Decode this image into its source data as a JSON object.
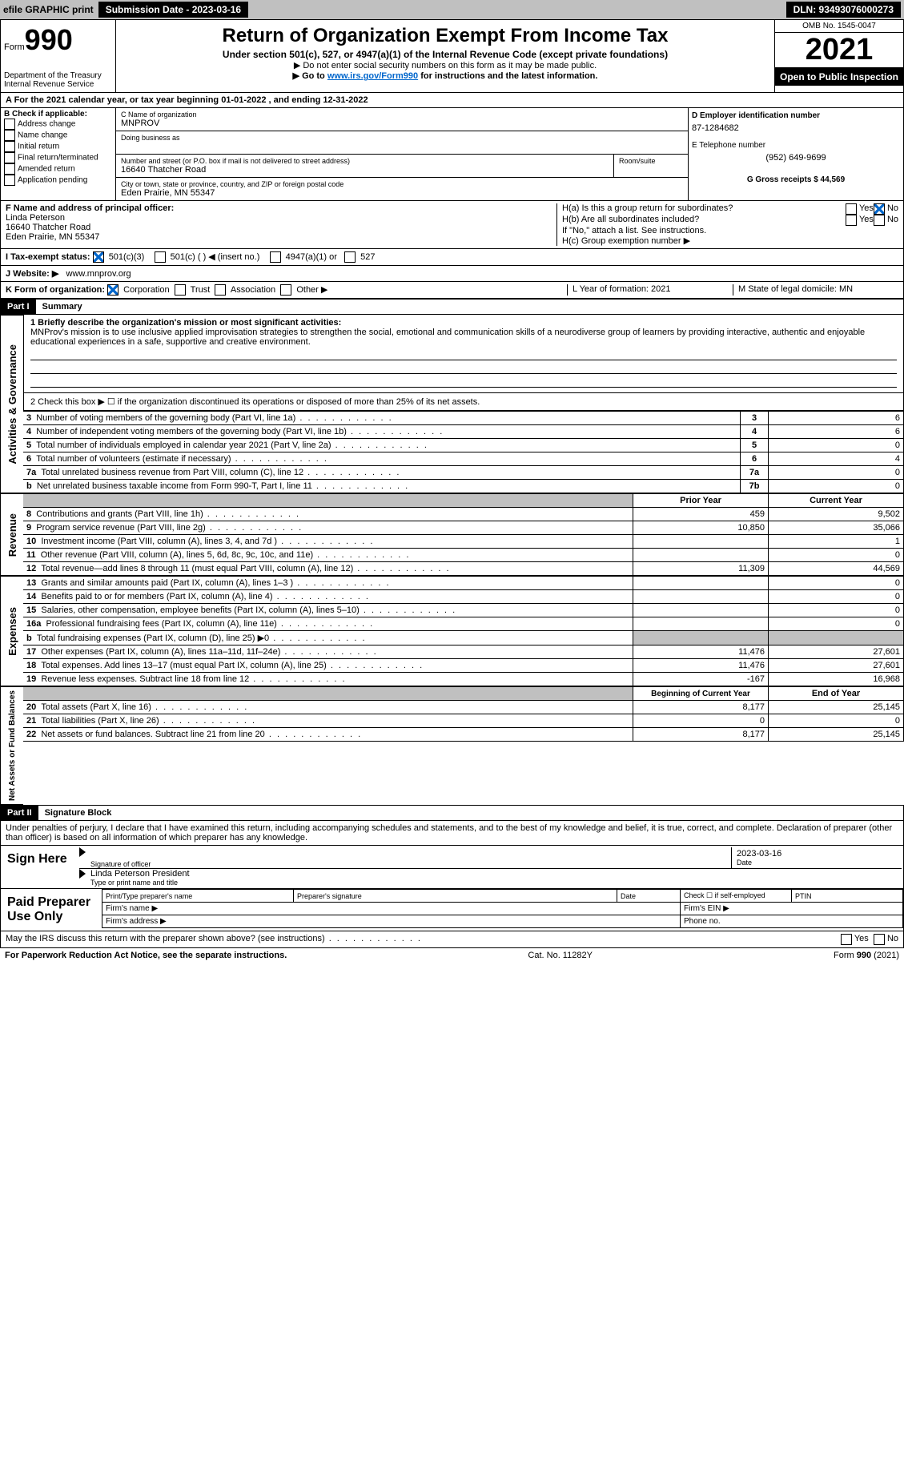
{
  "top_bar": {
    "efile_label": "efile GRAPHIC print",
    "submission_label": "Submission Date - 2023-03-16",
    "dln_label": "DLN: 93493076000273"
  },
  "header": {
    "form_word": "Form",
    "form_num": "990",
    "dept": "Department of the Treasury",
    "irs": "Internal Revenue Service",
    "title": "Return of Organization Exempt From Income Tax",
    "subtitle": "Under section 501(c), 527, or 4947(a)(1) of the Internal Revenue Code (except private foundations)",
    "note1": "▶ Do not enter social security numbers on this form as it may be made public.",
    "note2_pre": "▶ Go to ",
    "note2_link": "www.irs.gov/Form990",
    "note2_post": " for instructions and the latest information.",
    "omb": "OMB No. 1545-0047",
    "year": "2021",
    "open": "Open to Public Inspection"
  },
  "period": {
    "line": "A For the 2021 calendar year, or tax year beginning 01-01-2022    , and ending 12-31-2022"
  },
  "section_b": {
    "title": "B Check if applicable:",
    "opts": [
      "Address change",
      "Name change",
      "Initial return",
      "Final return/terminated",
      "Amended return",
      "Application pending"
    ]
  },
  "section_c": {
    "name_label": "C Name of organization",
    "name": "MNPROV",
    "dba_label": "Doing business as",
    "street_label": "Number and street (or P.O. box if mail is not delivered to street address)",
    "room_label": "Room/suite",
    "street": "16640 Thatcher Road",
    "city_label": "City or town, state or province, country, and ZIP or foreign postal code",
    "city": "Eden Prairie, MN  55347"
  },
  "section_d": {
    "ein_label": "D Employer identification number",
    "ein": "87-1284682",
    "phone_label": "E Telephone number",
    "phone": "(952) 649-9699",
    "gross_label": "G Gross receipts $ 44,569"
  },
  "section_f": {
    "label": "F  Name and address of principal officer:",
    "name": "Linda Peterson",
    "street": "16640 Thatcher Road",
    "city": "Eden Prairie, MN  55347"
  },
  "section_h": {
    "ha": "H(a)  Is this a group return for subordinates?",
    "hb": "H(b)  Are all subordinates included?",
    "hb_note": "If \"No,\" attach a list. See instructions.",
    "hc": "H(c)  Group exemption number ▶",
    "yes": "Yes",
    "no": "No"
  },
  "section_i": {
    "label": "I    Tax-exempt status:",
    "o1": "501(c)(3)",
    "o2": "501(c) (  ) ◀ (insert no.)",
    "o3": "4947(a)(1) or",
    "o4": "527"
  },
  "section_j": {
    "label": "J   Website: ▶",
    "url": "www.mnprov.org"
  },
  "section_k": {
    "label": "K Form of organization:",
    "o1": "Corporation",
    "o2": "Trust",
    "o3": "Association",
    "o4": "Other ▶"
  },
  "section_l": {
    "label": "L Year of formation: 2021"
  },
  "section_m": {
    "label": "M State of legal domicile: MN"
  },
  "part1": {
    "hdr": "Part I",
    "title": "Summary",
    "q1_label": "1  Briefly describe the organization's mission or most significant activities:",
    "mission": "MNProv's mission is to use inclusive applied improvisation strategies to strengthen the social, emotional and communication skills of a neurodiverse group of learners by providing interactive, authentic and enjoyable educational experiences in a safe, supportive and creative environment.",
    "q2": "2    Check this box ▶ ☐  if the organization discontinued its operations or disposed of more than 25% of its net assets.",
    "rows_a": [
      {
        "n": "3",
        "t": "Number of voting members of the governing body (Part VI, line 1a)",
        "box": "3",
        "v": "6"
      },
      {
        "n": "4",
        "t": "Number of independent voting members of the governing body (Part VI, line 1b)",
        "box": "4",
        "v": "6"
      },
      {
        "n": "5",
        "t": "Total number of individuals employed in calendar year 2021 (Part V, line 2a)",
        "box": "5",
        "v": "0"
      },
      {
        "n": "6",
        "t": "Total number of volunteers (estimate if necessary)",
        "box": "6",
        "v": "4"
      },
      {
        "n": "7a",
        "t": "Total unrelated business revenue from Part VIII, column (C), line 12",
        "box": "7a",
        "v": "0"
      },
      {
        "n": "b",
        "t": "Net unrelated business taxable income from Form 990-T, Part I, line 11",
        "box": "7b",
        "v": "0"
      }
    ],
    "prior_hdr": "Prior Year",
    "current_hdr": "Current Year",
    "rows_rev": [
      {
        "n": "8",
        "t": "Contributions and grants (Part VIII, line 1h)",
        "p": "459",
        "c": "9,502"
      },
      {
        "n": "9",
        "t": "Program service revenue (Part VIII, line 2g)",
        "p": "10,850",
        "c": "35,066"
      },
      {
        "n": "10",
        "t": "Investment income (Part VIII, column (A), lines 3, 4, and 7d )",
        "p": "",
        "c": "1"
      },
      {
        "n": "11",
        "t": "Other revenue (Part VIII, column (A), lines 5, 6d, 8c, 9c, 10c, and 11e)",
        "p": "",
        "c": "0"
      },
      {
        "n": "12",
        "t": "Total revenue—add lines 8 through 11 (must equal Part VIII, column (A), line 12)",
        "p": "11,309",
        "c": "44,569"
      }
    ],
    "rows_exp": [
      {
        "n": "13",
        "t": "Grants and similar amounts paid (Part IX, column (A), lines 1–3 )",
        "p": "",
        "c": "0"
      },
      {
        "n": "14",
        "t": "Benefits paid to or for members (Part IX, column (A), line 4)",
        "p": "",
        "c": "0"
      },
      {
        "n": "15",
        "t": "Salaries, other compensation, employee benefits (Part IX, column (A), lines 5–10)",
        "p": "",
        "c": "0"
      },
      {
        "n": "16a",
        "t": "Professional fundraising fees (Part IX, column (A), line 11e)",
        "p": "",
        "c": "0"
      },
      {
        "n": "b",
        "t": "Total fundraising expenses (Part IX, column (D), line 25) ▶0",
        "p": "GRAY",
        "c": "GRAY"
      },
      {
        "n": "17",
        "t": "Other expenses (Part IX, column (A), lines 11a–11d, 11f–24e)",
        "p": "11,476",
        "c": "27,601"
      },
      {
        "n": "18",
        "t": "Total expenses. Add lines 13–17 (must equal Part IX, column (A), line 25)",
        "p": "11,476",
        "c": "27,601"
      },
      {
        "n": "19",
        "t": "Revenue less expenses. Subtract line 18 from line 12",
        "p": "-167",
        "c": "16,968"
      }
    ],
    "beg_hdr": "Beginning of Current Year",
    "end_hdr": "End of Year",
    "rows_net": [
      {
        "n": "20",
        "t": "Total assets (Part X, line 16)",
        "p": "8,177",
        "c": "25,145"
      },
      {
        "n": "21",
        "t": "Total liabilities (Part X, line 26)",
        "p": "0",
        "c": "0"
      },
      {
        "n": "22",
        "t": "Net assets or fund balances. Subtract line 21 from line 20",
        "p": "8,177",
        "c": "25,145"
      }
    ]
  },
  "side_tabs": {
    "gov": "Activities & Governance",
    "rev": "Revenue",
    "exp": "Expenses",
    "net": "Net Assets or Fund Balances"
  },
  "part2": {
    "hdr": "Part II",
    "title": "Signature Block",
    "jurat": "Under penalties of perjury, I declare that I have examined this return, including accompanying schedules and statements, and to the best of my knowledge and belief, it is true, correct, and complete. Declaration of preparer (other than officer) is based on all information of which preparer has any knowledge.",
    "sign_here": "Sign Here",
    "sig_of_officer": "Signature of officer",
    "date": "Date",
    "sig_date": "2023-03-16",
    "officer_name": "Linda Peterson  President",
    "type_name": "Type or print name and title",
    "paid": "Paid Preparer Use Only",
    "prep_name": "Print/Type preparer's name",
    "prep_sig": "Preparer's signature",
    "date2": "Date",
    "check_self": "Check ☐ if self-employed",
    "ptin": "PTIN",
    "firm_name": "Firm's name    ▶",
    "firm_ein": "Firm's EIN ▶",
    "firm_addr": "Firm's address ▶",
    "phone": "Phone no.",
    "discuss": "May the IRS discuss this return with the preparer shown above? (see instructions)",
    "yes": "Yes",
    "no": "No"
  },
  "footer": {
    "pra": "For Paperwork Reduction Act Notice, see the separate instructions.",
    "cat": "Cat. No. 11282Y",
    "form": "Form 990 (2021)"
  }
}
